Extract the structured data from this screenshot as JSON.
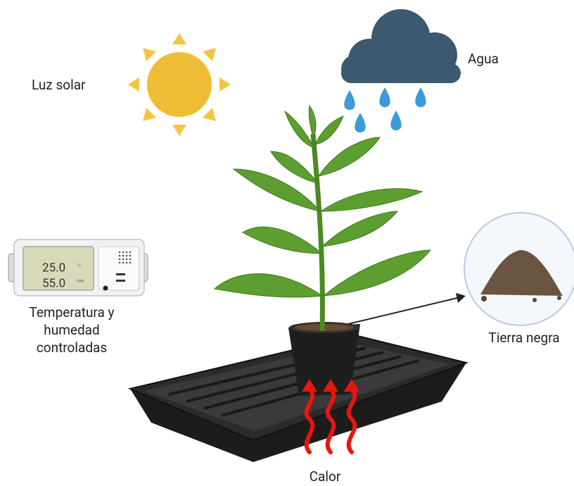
{
  "labels": {
    "sun": "Luz solar",
    "water": "Agua",
    "device": [
      "Temperatura y",
      "humedad",
      "controladas"
    ],
    "soil": "Tierra negra",
    "heat": "Calor"
  },
  "device_display": {
    "temperature": "25.0",
    "humidity": "55.0",
    "temperature_unit": "°C",
    "humidity_unit": "%RH"
  }
}
